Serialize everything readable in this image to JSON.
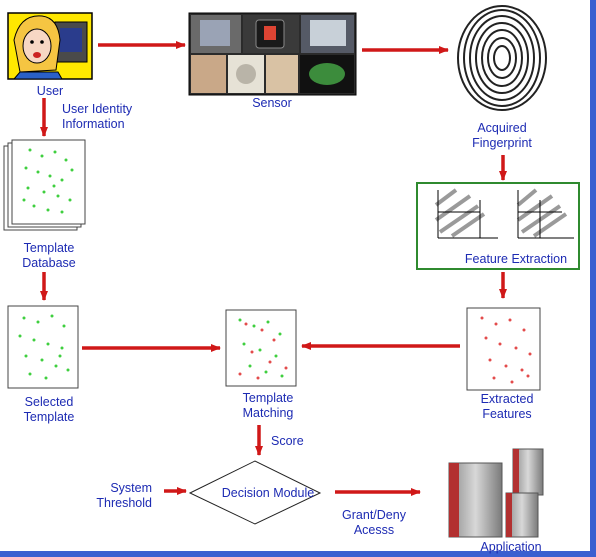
{
  "labels": {
    "user": "User",
    "user_identity": "User Identity\nInformation",
    "sensor": "Sensor",
    "acquired_fingerprint": "Acquired\nFingerprint",
    "feature_extraction": "Feature Extraction",
    "template_database": "Template\nDatabase",
    "selected_template": "Selected\nTemplate",
    "template_matching": "Template\nMatching",
    "extracted_features": "Extracted\nFeatures",
    "score": "Score",
    "system_threshold": "System\nThreshold",
    "decision_module": "Decision Module",
    "grant_deny": "Grant/Deny\nAcesss",
    "application": "Application"
  },
  "colors": {
    "label_text": "#1d2bb3",
    "arrow": "#d01818",
    "template_dots": "#3fcf3f",
    "feature_dots": "#e34b4b",
    "feature_box_border": "#2f8a2f",
    "background_border": "#3a5fd0"
  },
  "icons": {
    "user": "user-at-computer-icon",
    "sensor": "fingerprint-sensors-collage-icon",
    "fingerprint": "fingerprint-icon",
    "application": "server-cluster-icon"
  }
}
